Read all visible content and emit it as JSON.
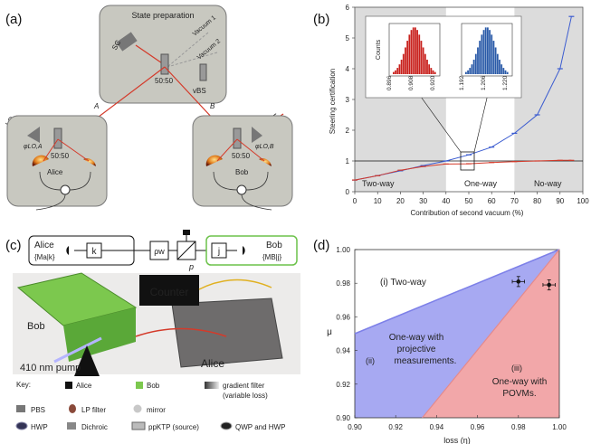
{
  "panels": {
    "a": {
      "label": "(a)",
      "state_box_title": "State preparation",
      "sc_label": "SC",
      "vacuum1": "Vacuum 1",
      "vacuum2": "Vacuum 2",
      "bs_center": "50:50",
      "vbs": "vBS",
      "lo_left": "LO",
      "lo_right": "LO",
      "path_a": "A",
      "path_b": "B",
      "alice": "Alice",
      "bob": "Bob",
      "bs_alice": "50:50",
      "bs_bob": "50:50",
      "phi_a": "φLO,A",
      "phi_b": "φLO,B"
    },
    "b": {
      "label": "(b)",
      "region_left": "Two-way",
      "region_mid": "One-way",
      "region_right": "No-way",
      "inset_counts": "Counts",
      "inset1_ticks": [
        "0.896",
        "0.908",
        "0.920"
      ],
      "inset2_ticks": [
        "1.192",
        "1.206",
        "1.220"
      ]
    },
    "c": {
      "label": "(c)",
      "alice_box": "Alice",
      "alice_meas": "{Ma|k}",
      "k": "k",
      "rho": "ρw",
      "p": "p",
      "j": "j",
      "bob_box": "Bob",
      "bob_meas": "{MB|j}",
      "counter": "Counter",
      "bob_photo": "Bob",
      "alice_photo": "Alice",
      "pump": "410 nm pump",
      "key_title": "Key:",
      "key_items": {
        "alice": "Alice",
        "bob": "Bob",
        "gradient": "gradient filter",
        "gradient2": "(variable loss)",
        "pbs": "PBS",
        "lp": "LP filter",
        "mirror": "mirror",
        "hwp": "HWP",
        "dichroic": "Dichroic",
        "ppktp": "ppKTP (source)",
        "qwp": "QWP and HWP"
      }
    },
    "d": {
      "label": "(d)",
      "region_two": "(i)  Two-way",
      "region_one_proj_1": "One-way with",
      "region_one_proj_2": "projective",
      "region_one_proj_3": "measurements.",
      "region_ii": "(ii)",
      "region_iii": "(iii)",
      "region_povm_1": "One-way with",
      "region_povm_2": "POVMs."
    }
  },
  "colors": {
    "state_box": "#c8c8c0",
    "shaded_region": "#dcdcdc",
    "blue_line": "#3a5bd0",
    "red_line": "#d43a2a",
    "histogram_red": "#c8201c",
    "histogram_blue": "#2a5aa8",
    "region_blue": "#a7a9f2",
    "region_red": "#f2a7a9",
    "alice_green": "#8cd26a",
    "bob_green_border": "#6cc24a"
  },
  "chart_data": [
    {
      "type": "line",
      "panel": "b",
      "xlabel": "Contribution of second vacuum (%)",
      "ylabel": "Steering certification",
      "xlim": [
        0,
        100
      ],
      "ylim": [
        0,
        6
      ],
      "xticks": [
        "0",
        "10",
        "20",
        "30",
        "40",
        "50",
        "60",
        "70",
        "80",
        "90",
        "100"
      ],
      "yticks": [
        "0",
        "1",
        "2",
        "3",
        "4",
        "5",
        "6"
      ],
      "threshold": 1,
      "shaded_regions": [
        [
          0,
          40
        ],
        [
          70,
          100
        ]
      ],
      "series": [
        {
          "color": "blue",
          "x": [
            0,
            10,
            20,
            30,
            40,
            50,
            60,
            70,
            80,
            90,
            95
          ],
          "y": [
            0.38,
            0.52,
            0.68,
            0.85,
            1.0,
            1.2,
            1.45,
            1.9,
            2.5,
            4.0,
            5.7
          ]
        },
        {
          "color": "red",
          "x": [
            0,
            10,
            20,
            30,
            40,
            50,
            60,
            70,
            80,
            90,
            95
          ],
          "y": [
            0.38,
            0.52,
            0.7,
            0.82,
            0.9,
            0.91,
            0.95,
            0.98,
            1.0,
            1.02,
            1.02
          ]
        }
      ],
      "insets": [
        {
          "type": "histogram",
          "color": "red",
          "range": [
            0.896,
            0.92
          ],
          "center": 0.908
        },
        {
          "type": "histogram",
          "color": "blue",
          "range": [
            1.192,
            1.22
          ],
          "center": 1.206
        }
      ]
    },
    {
      "type": "area",
      "panel": "d",
      "xlabel": "loss (η)",
      "ylabel": "μ",
      "xlim": [
        0.9,
        1.0
      ],
      "ylim": [
        0.9,
        1.0
      ],
      "xticks": [
        "0.90",
        "0.92",
        "0.94",
        "0.96",
        "0.98",
        "1.00"
      ],
      "yticks": [
        "0.90",
        "0.92",
        "0.94",
        "0.96",
        "0.98",
        "1.00"
      ],
      "boundaries": {
        "two_way_vs_one_way": [
          [
            0.9,
            0.95
          ],
          [
            1.0,
            1.0
          ]
        ],
        "projective_vs_povm": [
          [
            0.933,
            0.9
          ],
          [
            1.0,
            1.0
          ]
        ]
      },
      "points": [
        {
          "x": 0.98,
          "y": 0.981,
          "xerr": 0.003,
          "yerr": 0.003
        },
        {
          "x": 0.995,
          "y": 0.979,
          "xerr": 0.003,
          "yerr": 0.003
        }
      ]
    }
  ]
}
